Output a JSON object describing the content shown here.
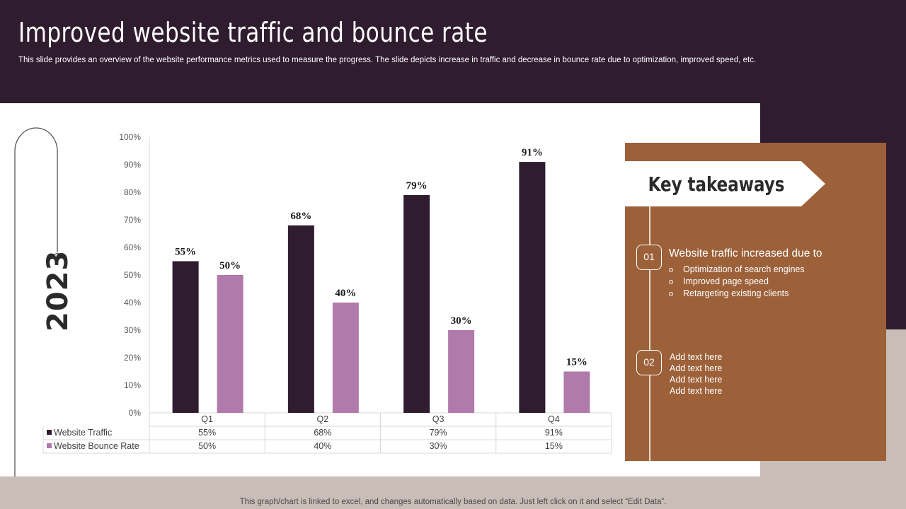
{
  "header": {
    "title": "Improved website traffic and bounce rate",
    "subtitle": "This slide provides an overview of the website performance metrics used to measure the progress. The slide depicts increase in traffic and decrease in bounce rate due to optimization, improved speed, etc."
  },
  "year": "2023",
  "chart_data": {
    "type": "bar",
    "categories": [
      "Q1",
      "Q2",
      "Q3",
      "Q4"
    ],
    "series": [
      {
        "name": "Website Traffic",
        "values": [
          55,
          68,
          79,
          91
        ],
        "labels": [
          "55%",
          "68%",
          "79%",
          "91%"
        ],
        "color": "#2f1c2e"
      },
      {
        "name": "Website Bounce Rate",
        "values": [
          50,
          40,
          30,
          15
        ],
        "labels": [
          "50%",
          "40%",
          "30%",
          "15%"
        ],
        "color": "#b07aaa"
      }
    ],
    "ylim": [
      0,
      100
    ],
    "yticks": [
      "0%",
      "10%",
      "20%",
      "30%",
      "40%",
      "50%",
      "60%",
      "70%",
      "80%",
      "90%",
      "100%"
    ],
    "data_table": true,
    "grid": false
  },
  "key_takeaways": {
    "title": "Key takeaways",
    "items": [
      {
        "number": "01",
        "heading": "Website traffic increased due to",
        "bullets": [
          "Optimization of search engines",
          "Improved  page speed",
          "Retargeting existing clients"
        ]
      },
      {
        "number": "02",
        "lines": [
          "Add text here",
          "Add text here",
          "Add text here",
          "Add text here"
        ]
      }
    ],
    "bullet_symbol": "o"
  },
  "footer_note": "This graph/chart is linked to excel,  and changes automatically based on data. Just left click on it and select “Edit Data”.",
  "colors": {
    "header_bg": "#2f1c2e",
    "accent_brown": "#9d613a",
    "series_traffic": "#2f1c2e",
    "series_bounce": "#b07aaa",
    "page_bg": "#c9bdb7"
  }
}
